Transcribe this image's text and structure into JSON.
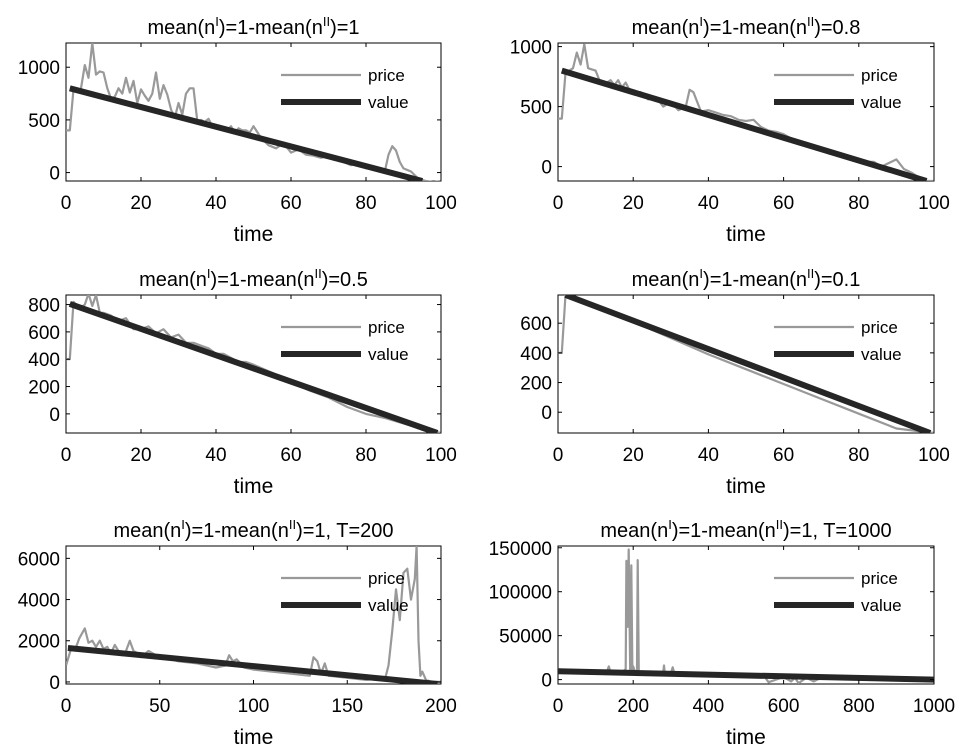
{
  "styles": {
    "price_color": "#999999",
    "value_color": "#262626",
    "axes_color": "#000000"
  },
  "chart_data": [
    {
      "type": "line",
      "title": {
        "pre": "mean(n",
        "sup1": "I",
        "mid": ")=1-mean(n",
        "sup2": "II",
        "post": ")=1"
      },
      "xlabel": "time",
      "xlim": [
        0,
        100
      ],
      "ylim": [
        -80,
        1230
      ],
      "xticks": [
        0,
        20,
        40,
        60,
        80,
        100
      ],
      "yticks": [
        0,
        500,
        1000
      ],
      "legend": {
        "position": "top-right",
        "entries": [
          "price",
          "value"
        ]
      },
      "series": [
        {
          "name": "price",
          "x": [
            0,
            1,
            2,
            3,
            4,
            5,
            6,
            7,
            8,
            9,
            10,
            11,
            12,
            13,
            14,
            15,
            16,
            17,
            18,
            19,
            20,
            21,
            22,
            23,
            24,
            25,
            26,
            27,
            28,
            29,
            30,
            31,
            32,
            33,
            34,
            35,
            36,
            37,
            38,
            39,
            40,
            41,
            42,
            43,
            44,
            45,
            46,
            47,
            48,
            49,
            50,
            52,
            54,
            56,
            58,
            60,
            62,
            64,
            66,
            68,
            70,
            72,
            74,
            76,
            78,
            80,
            82,
            84,
            85,
            86,
            87,
            88,
            89,
            90,
            92,
            94,
            96,
            98,
            100
          ],
          "y": [
            400,
            400,
            790,
            780,
            800,
            1020,
            900,
            1230,
            930,
            960,
            950,
            800,
            700,
            720,
            800,
            750,
            900,
            760,
            870,
            660,
            790,
            730,
            680,
            750,
            950,
            700,
            830,
            740,
            600,
            520,
            660,
            550,
            750,
            800,
            800,
            490,
            500,
            480,
            510,
            440,
            450,
            420,
            430,
            400,
            440,
            380,
            420,
            400,
            400,
            380,
            440,
            330,
            260,
            230,
            280,
            190,
            220,
            170,
            160,
            140,
            160,
            120,
            100,
            70,
            90,
            40,
            40,
            40,
            10,
            170,
            250,
            210,
            100,
            40,
            10,
            -60,
            -80,
            -90,
            -80
          ]
        },
        {
          "name": "value",
          "x": [
            1,
            95
          ],
          "y": [
            800,
            -80
          ]
        }
      ]
    },
    {
      "type": "line",
      "title": {
        "pre": "mean(n",
        "sup1": "I",
        "mid": ")=1-mean(n",
        "sup2": "II",
        "post": ")=0.8"
      },
      "xlabel": "time",
      "xlim": [
        0,
        100
      ],
      "ylim": [
        -120,
        1030
      ],
      "xticks": [
        0,
        20,
        40,
        60,
        80,
        100
      ],
      "yticks": [
        0,
        500,
        1000
      ],
      "legend": {
        "position": "top-right",
        "entries": [
          "price",
          "value"
        ]
      },
      "series": [
        {
          "name": "price",
          "x": [
            0,
            1,
            2,
            3,
            4,
            5,
            6,
            7,
            8,
            9,
            10,
            11,
            12,
            13,
            14,
            15,
            16,
            17,
            18,
            19,
            20,
            22,
            24,
            26,
            28,
            30,
            32,
            34,
            35,
            36,
            38,
            40,
            42,
            44,
            46,
            48,
            50,
            52,
            54,
            56,
            58,
            60,
            64,
            68,
            72,
            76,
            80,
            84,
            86,
            88,
            90,
            92,
            94,
            96,
            98,
            100
          ],
          "y": [
            400,
            400,
            780,
            800,
            820,
            950,
            850,
            1020,
            820,
            810,
            800,
            720,
            700,
            700,
            720,
            680,
            720,
            660,
            700,
            640,
            620,
            620,
            560,
            580,
            500,
            540,
            470,
            500,
            640,
            620,
            460,
            470,
            450,
            430,
            420,
            390,
            380,
            390,
            330,
            300,
            290,
            270,
            200,
            160,
            110,
            80,
            40,
            40,
            0,
            30,
            60,
            -20,
            -50,
            -90,
            -120,
            -120
          ]
        },
        {
          "name": "value",
          "x": [
            1,
            98
          ],
          "y": [
            800,
            -120
          ]
        }
      ]
    },
    {
      "type": "line",
      "title": {
        "pre": "mean(n",
        "sup1": "I",
        "mid": ")=1-mean(n",
        "sup2": "II",
        "post": ")=0.5"
      },
      "xlabel": "time",
      "xlim": [
        0,
        100
      ],
      "ylim": [
        -140,
        870
      ],
      "xticks": [
        0,
        20,
        40,
        60,
        80,
        100
      ],
      "yticks": [
        0,
        200,
        400,
        600,
        800
      ],
      "legend": {
        "position": "top-right",
        "entries": [
          "price",
          "value"
        ]
      },
      "series": [
        {
          "name": "price",
          "x": [
            0,
            1,
            2,
            3,
            4,
            5,
            6,
            7,
            8,
            9,
            10,
            12,
            14,
            16,
            18,
            20,
            22,
            24,
            26,
            28,
            30,
            32,
            34,
            36,
            38,
            40,
            42,
            44,
            46,
            48,
            50,
            55,
            60,
            65,
            70,
            75,
            80,
            85,
            90,
            95,
            100
          ],
          "y": [
            400,
            400,
            820,
            790,
            780,
            800,
            880,
            790,
            870,
            740,
            740,
            720,
            680,
            700,
            620,
            620,
            640,
            590,
            620,
            560,
            580,
            520,
            520,
            500,
            480,
            440,
            440,
            410,
            380,
            380,
            360,
            300,
            230,
            170,
            120,
            50,
            0,
            -30,
            -70,
            -110,
            -140
          ]
        },
        {
          "name": "value",
          "x": [
            1,
            99
          ],
          "y": [
            805,
            -140
          ]
        }
      ]
    },
    {
      "type": "line",
      "title": {
        "pre": "mean(n",
        "sup1": "I",
        "mid": ")=1-mean(n",
        "sup2": "II",
        "post": ")=0.1"
      },
      "xlabel": "time",
      "xlim": [
        0,
        100
      ],
      "ylim": [
        -140,
        790
      ],
      "xticks": [
        0,
        20,
        40,
        60,
        80,
        100
      ],
      "yticks": [
        0,
        200,
        400,
        600
      ],
      "legend": {
        "position": "top-right",
        "entries": [
          "price",
          "value"
        ]
      },
      "series": [
        {
          "name": "price",
          "x": [
            0,
            1,
            2,
            3,
            5,
            10,
            20,
            30,
            40,
            50,
            60,
            70,
            80,
            90,
            100
          ],
          "y": [
            400,
            400,
            790,
            780,
            770,
            720,
            610,
            500,
            390,
            290,
            190,
            90,
            -10,
            -110,
            -140
          ]
        },
        {
          "name": "value",
          "x": [
            2,
            99
          ],
          "y": [
            790,
            -140
          ]
        }
      ]
    },
    {
      "type": "line",
      "title": {
        "pre": "mean(n",
        "sup1": "I",
        "mid": ")=1-mean(n",
        "sup2": "II",
        "post": ")=1, T=200"
      },
      "xlabel": "time",
      "xlim": [
        0,
        200
      ],
      "ylim": [
        -100,
        6600
      ],
      "xticks": [
        0,
        50,
        100,
        150,
        200
      ],
      "yticks": [
        0,
        2000,
        4000,
        6000
      ],
      "legend": {
        "position": "top-right",
        "entries": [
          "price",
          "value"
        ]
      },
      "series": [
        {
          "name": "price",
          "x": [
            0,
            3,
            5,
            7,
            10,
            12,
            14,
            16,
            18,
            20,
            22,
            24,
            26,
            28,
            30,
            32,
            34,
            36,
            38,
            40,
            44,
            48,
            52,
            56,
            60,
            70,
            80,
            85,
            87,
            89,
            91,
            95,
            100,
            110,
            120,
            130,
            132,
            134,
            136,
            138,
            140,
            150,
            160,
            165,
            170,
            172,
            174,
            176,
            178,
            180,
            182,
            184,
            186,
            187,
            188,
            189,
            190,
            192,
            195,
            200
          ],
          "y": [
            800,
            1700,
            1600,
            2100,
            2600,
            1900,
            2000,
            1700,
            2000,
            1600,
            1700,
            1400,
            1800,
            1500,
            1300,
            1500,
            2000,
            1500,
            1400,
            1200,
            1500,
            1300,
            1200,
            1100,
            1000,
            900,
            700,
            800,
            1300,
            1000,
            1100,
            700,
            600,
            500,
            400,
            300,
            1200,
            1000,
            400,
            900,
            300,
            200,
            100,
            150,
            100,
            800,
            2500,
            4500,
            3000,
            5300,
            5500,
            4000,
            5000,
            6600,
            2000,
            300,
            500,
            100,
            0,
            0
          ]
        },
        {
          "name": "value",
          "x": [
            1,
            198
          ],
          "y": [
            1650,
            -100
          ]
        }
      ]
    },
    {
      "type": "line",
      "title": {
        "pre": "mean(n",
        "sup1": "I",
        "mid": ")=1-mean(n",
        "sup2": "II",
        "post": ")=1, T=1000"
      },
      "xlabel": "time",
      "xlim": [
        0,
        1000
      ],
      "ylim": [
        -5000,
        152000
      ],
      "xticks": [
        0,
        200,
        400,
        600,
        800,
        1000
      ],
      "yticks": [
        0,
        50000,
        100000,
        150000
      ],
      "legend": {
        "position": "top-right",
        "entries": [
          "price",
          "value"
        ]
      },
      "series": [
        {
          "name": "price",
          "x": [
            0,
            20,
            40,
            60,
            100,
            130,
            135,
            140,
            150,
            170,
            180,
            182,
            185,
            188,
            192,
            195,
            198,
            200,
            205,
            210,
            212,
            215,
            218,
            222,
            240,
            280,
            282,
            284,
            300,
            305,
            310,
            350,
            400,
            450,
            500,
            550,
            560,
            600,
            620,
            630,
            640,
            660,
            680,
            700,
            800,
            900,
            1000
          ],
          "y": [
            12000,
            10000,
            11000,
            9000,
            10000,
            9000,
            15000,
            8000,
            9000,
            8000,
            12000,
            135000,
            60000,
            148000,
            10000,
            130000,
            8000,
            15000,
            8000,
            10000,
            136000,
            7000,
            9000,
            8000,
            7000,
            9000,
            16000,
            7000,
            7000,
            14000,
            6000,
            6000,
            5000,
            5000,
            4000,
            3000,
            -3000,
            3000,
            -2000,
            2000,
            -4000,
            2000,
            -2000,
            2000,
            1500,
            1000,
            500
          ]
        },
        {
          "name": "value",
          "x": [
            0,
            1000
          ],
          "y": [
            9500,
            0
          ]
        }
      ]
    }
  ]
}
